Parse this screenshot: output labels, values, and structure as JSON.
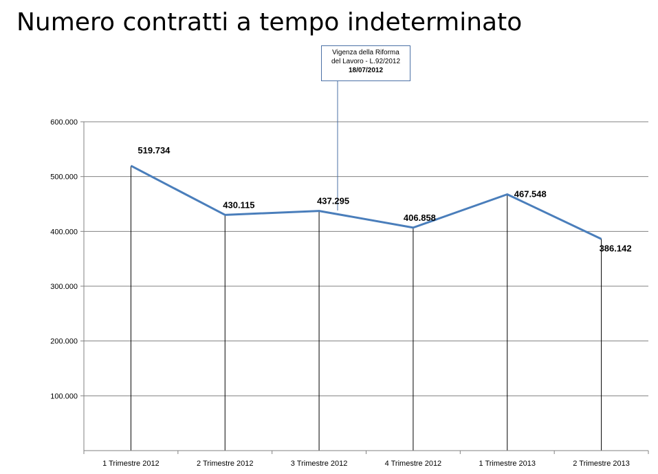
{
  "title": "Numero contratti a tempo indeterminato",
  "callout": {
    "line1": "Vigenza della Riforma",
    "line2": "del Lavoro - L.92/2012",
    "date": "18/07/2012"
  },
  "colors": {
    "series": "#4a7ebb",
    "grid": "#808080",
    "drop_lines": "#000000",
    "callout_border": "#4a6fa5"
  },
  "chart_data": {
    "type": "line",
    "title": "Numero contratti a tempo indeterminato",
    "categories": [
      "1 Trimestre 2012",
      "2 Trimestre 2012",
      "3 Trimestre 2012",
      "4 Trimestre 2012",
      "1 Trimestre 2013",
      "2 Trimestre 2013"
    ],
    "series": [
      {
        "values": [
          519734,
          430115,
          437295,
          406858,
          467548,
          386142
        ]
      }
    ],
    "data_labels": [
      "519.734",
      "430.115",
      "437.295",
      "406.858",
      "467.548",
      "386.142"
    ],
    "y_ticks": [
      100000,
      200000,
      300000,
      400000,
      500000,
      600000
    ],
    "y_tick_labels": [
      "100.000",
      "200.000",
      "300.000",
      "400.000",
      "500.000",
      "600.000"
    ],
    "ylim": [
      0,
      600000
    ],
    "grid": true,
    "drop_lines": true,
    "legend": "none",
    "xlabel": "",
    "ylabel": ""
  }
}
